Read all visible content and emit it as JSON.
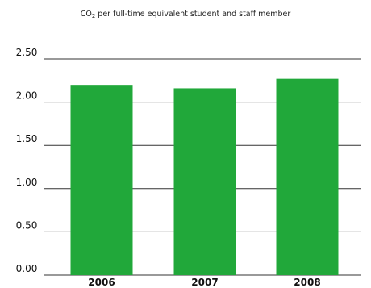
{
  "chart_data": {
    "type": "bar",
    "title": "CO₂ per full-time equivalent student and staff member",
    "title_main": "CO",
    "title_sub": "2",
    "title_rest": " per full-time equivalent student and staff member",
    "categories": [
      "2006",
      "2007",
      "2008"
    ],
    "values": [
      2.2,
      2.16,
      2.27
    ],
    "ylim": [
      0,
      2.5
    ],
    "yticks": [
      0.0,
      0.5,
      1.0,
      1.5,
      2.0,
      2.5
    ],
    "ytick_labels": [
      "0.00",
      "0.50",
      "1.00",
      "1.50",
      "2.00",
      "2.50"
    ],
    "xlabel": "",
    "ylabel": "",
    "grid": true,
    "bar_color": "#21a83a"
  }
}
